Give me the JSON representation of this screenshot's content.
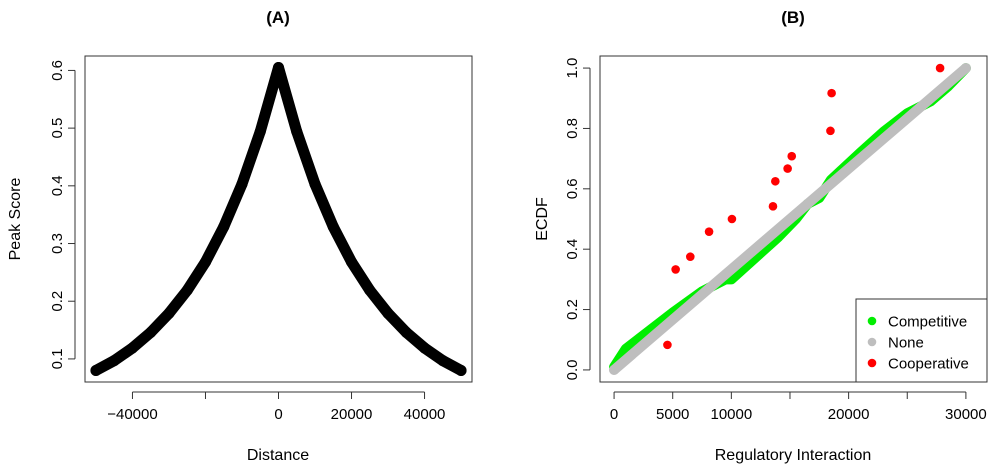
{
  "chart_data": [
    {
      "type": "line",
      "title": "(A)",
      "xlabel": "Distance",
      "ylabel": "Peak Score",
      "xlim": [
        -53000,
        53000
      ],
      "ylim": [
        0.06,
        0.625
      ],
      "xticks": [
        -40000,
        -20000,
        0,
        20000,
        40000
      ],
      "xtick_labels": [
        "-40000",
        "",
        "0",
        "20000",
        "40000"
      ],
      "yticks": [
        0.1,
        0.2,
        0.3,
        0.4,
        0.5,
        0.6
      ],
      "ytick_labels": [
        "0.1",
        "0.2",
        "0.3",
        "0.4",
        "0.5",
        "0.6"
      ],
      "grid": false,
      "series": [
        {
          "color": "#000000",
          "x": [
            -50000,
            -45000,
            -40000,
            -35000,
            -30000,
            -25000,
            -20000,
            -15000,
            -10000,
            -5000,
            0,
            5000,
            10000,
            15000,
            20000,
            25000,
            30000,
            35000,
            40000,
            45000,
            50000
          ],
          "y": [
            0.08,
            0.097,
            0.119,
            0.146,
            0.179,
            0.219,
            0.268,
            0.329,
            0.403,
            0.494,
            0.605,
            0.494,
            0.403,
            0.329,
            0.268,
            0.219,
            0.179,
            0.146,
            0.119,
            0.097,
            0.08
          ]
        }
      ]
    },
    {
      "type": "scatter",
      "title": "(B)",
      "xlabel": "Regulatory Interaction",
      "ylabel": "ECDF",
      "xlim": [
        -1200,
        31800
      ],
      "ylim": [
        -0.04,
        1.04
      ],
      "xticks": [
        0,
        5000,
        10000,
        15000,
        20000,
        25000,
        30000
      ],
      "xtick_labels": [
        "0",
        "5000",
        "10000",
        "",
        "20000",
        "",
        "30000"
      ],
      "yticks": [
        0.0,
        0.2,
        0.4,
        0.6,
        0.8,
        1.0
      ],
      "ytick_labels": [
        "0.0",
        "0.2",
        "0.4",
        "0.6",
        "0.8",
        "1.0"
      ],
      "grid": false,
      "legend_position": "bottom-right",
      "series": [
        {
          "name": "Competitive",
          "color": "#00ee00",
          "x": [
            0,
            1000,
            3000,
            5000,
            7500,
            9500,
            10000,
            12000,
            14000,
            15500,
            16500,
            17500,
            18500,
            21000,
            23000,
            25000,
            27000,
            28500,
            30000
          ],
          "y": [
            0.01,
            0.07,
            0.13,
            0.19,
            0.26,
            0.3,
            0.3,
            0.37,
            0.44,
            0.5,
            0.55,
            0.57,
            0.63,
            0.72,
            0.79,
            0.85,
            0.89,
            0.94,
            1.0
          ]
        },
        {
          "name": "None",
          "color": "#bebebe",
          "x": [
            0,
            30000
          ],
          "y": [
            0.0,
            1.0
          ]
        },
        {
          "name": "Cooperative",
          "color": "#ff0000",
          "x": [
            4550,
            5250,
            6500,
            8100,
            10050,
            13550,
            13750,
            14800,
            15150,
            18450,
            18550,
            27800
          ],
          "y": [
            0.083,
            0.333,
            0.375,
            0.458,
            0.5,
            0.542,
            0.625,
            0.667,
            0.708,
            0.792,
            0.917,
            1.0
          ]
        }
      ]
    }
  ]
}
